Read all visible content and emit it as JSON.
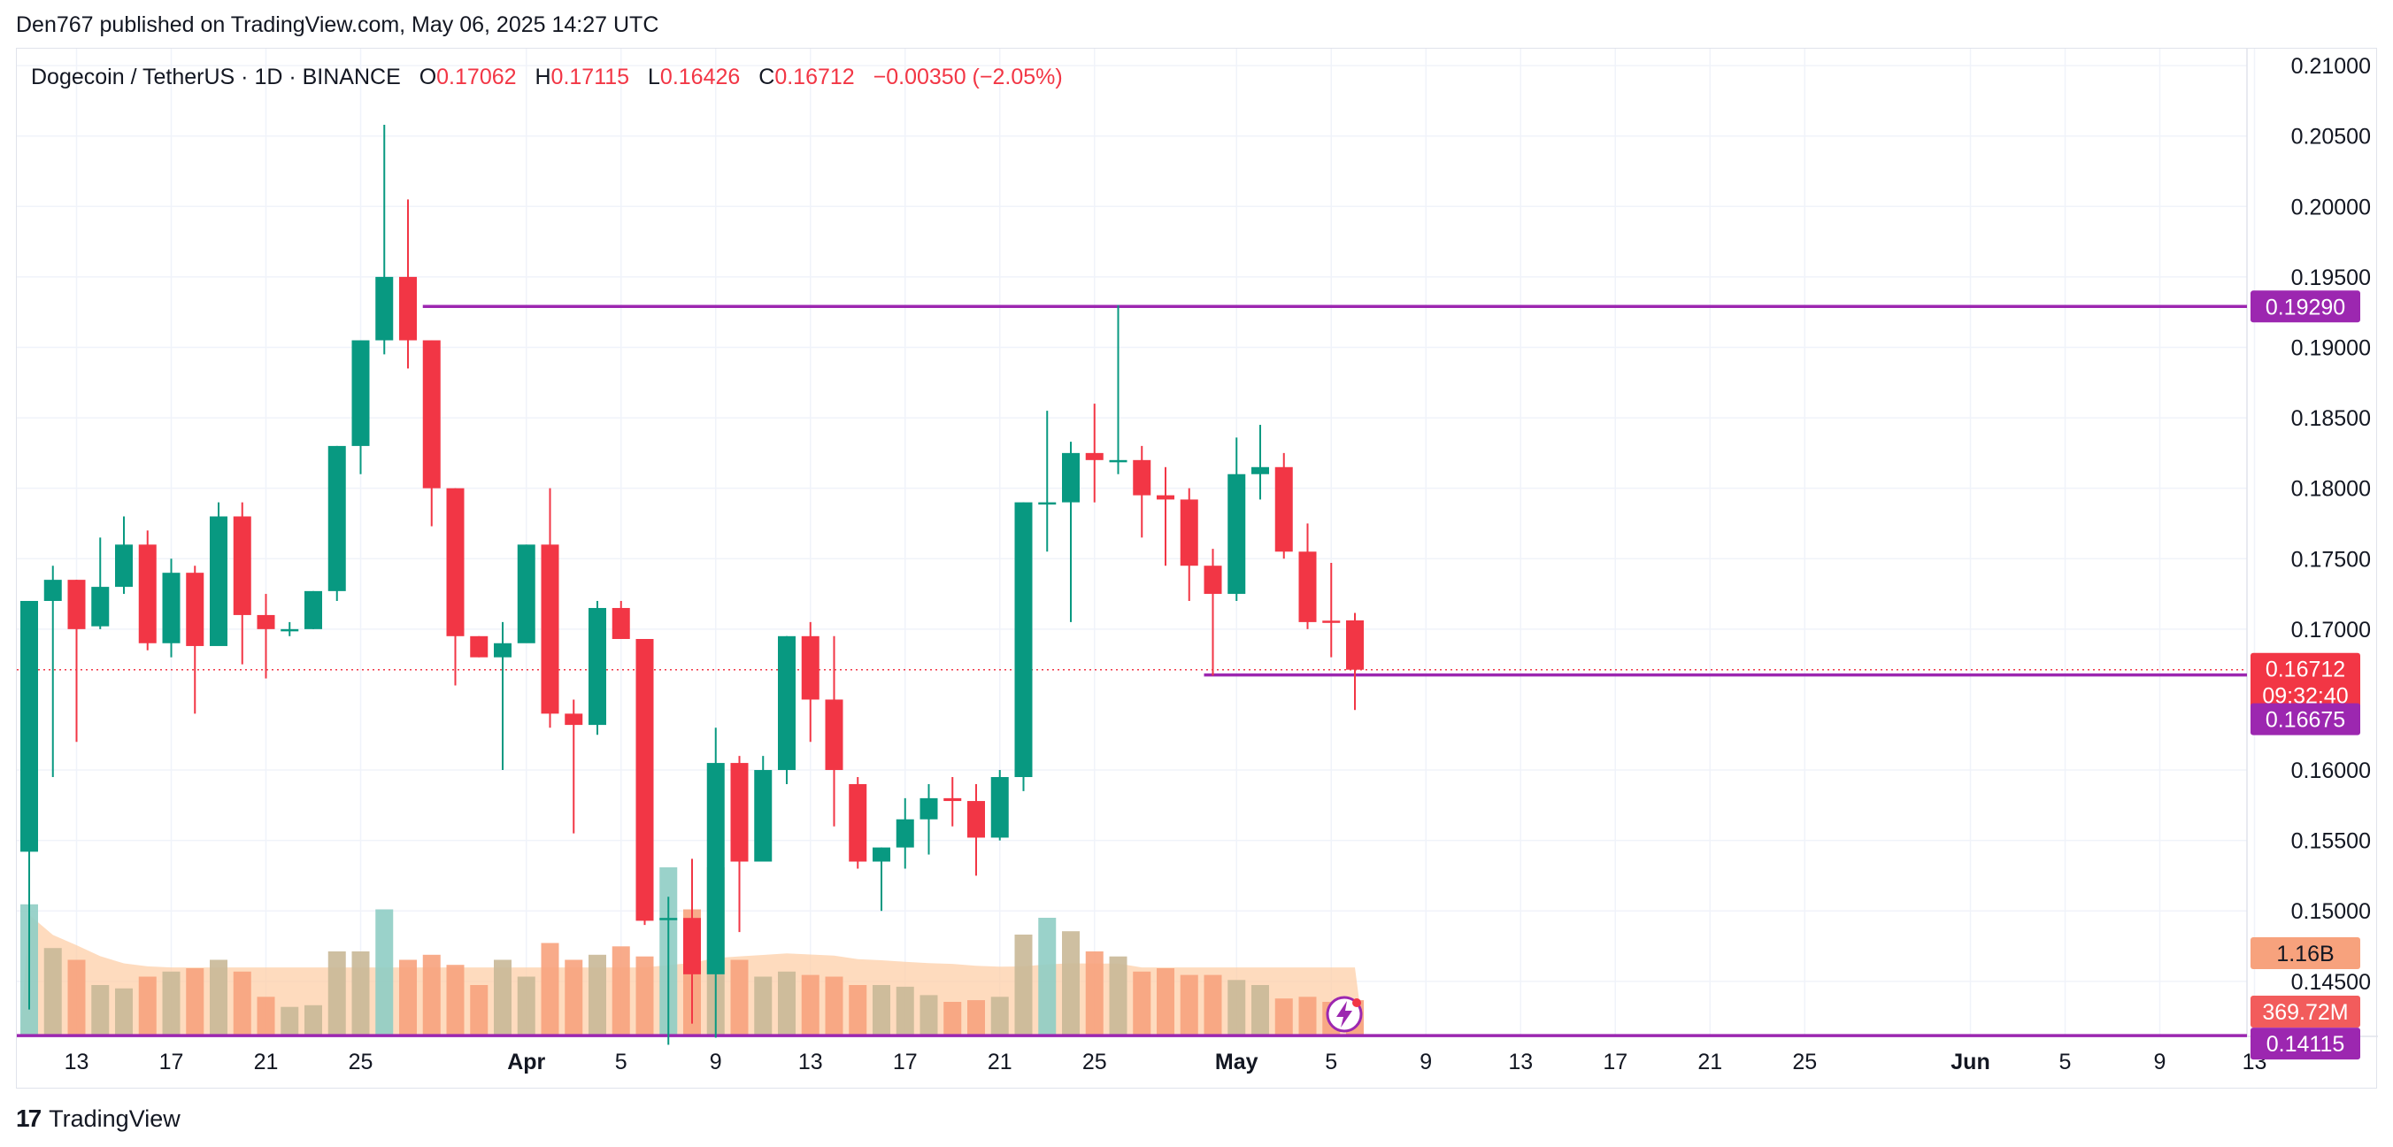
{
  "header": {
    "publisher": "Den767 published on TradingView.com, May 06, 2025 14:27 UTC"
  },
  "legend": {
    "symbol": "Dogecoin / TetherUS · 1D · BINANCE",
    "o_label": "O",
    "o": "0.17062",
    "h_label": "H",
    "h": "0.17115",
    "l_label": "L",
    "l": "0.16426",
    "c_label": "C",
    "c": "0.16712",
    "change": "−0.00350 (−2.05%)"
  },
  "footer": {
    "brand": "TradingView",
    "logo_icon": "tradingview-logo-icon"
  },
  "colors": {
    "up": "#089981",
    "down": "#f23645",
    "vol_up": "#c9b897",
    "vol_down": "#f7a27d",
    "vol_up_big": "#8fcdc4",
    "vol_ma": "#fdcfa8",
    "level": "#9c27b0",
    "grid": "#f0f3fa",
    "price_line": "#f23645"
  },
  "chart_data": {
    "type": "candlestick",
    "y_axis": {
      "ticks": [
        "0.21000",
        "0.20500",
        "0.20000",
        "0.19500",
        "0.19000",
        "0.18500",
        "0.18000",
        "0.17500",
        "0.17000",
        "0.16000",
        "0.15500",
        "0.15000",
        "0.14500"
      ],
      "ylim": [
        0.1399,
        0.2112
      ]
    },
    "x_axis": {
      "ticks": [
        {
          "label": "13",
          "i": 2
        },
        {
          "label": "17",
          "i": 6
        },
        {
          "label": "21",
          "i": 10
        },
        {
          "label": "25",
          "i": 14
        },
        {
          "label": "Apr",
          "i": 21
        },
        {
          "label": "5",
          "i": 25
        },
        {
          "label": "9",
          "i": 29
        },
        {
          "label": "13",
          "i": 33
        },
        {
          "label": "17",
          "i": 37
        },
        {
          "label": "21",
          "i": 41
        },
        {
          "label": "25",
          "i": 45
        },
        {
          "label": "May",
          "i": 51
        },
        {
          "label": "5",
          "i": 55
        },
        {
          "label": "9",
          "i": 59
        },
        {
          "label": "13",
          "i": 63
        },
        {
          "label": "17",
          "i": 67
        },
        {
          "label": "21",
          "i": 71
        },
        {
          "label": "25",
          "i": 75
        },
        {
          "label": "Jun",
          "i": 82
        },
        {
          "label": "5",
          "i": 86
        },
        {
          "label": "9",
          "i": 90
        },
        {
          "label": "13",
          "i": 94
        }
      ]
    },
    "candles": [
      [
        0.1542,
        0.172,
        0.143,
        0.172
      ],
      [
        0.172,
        0.1745,
        0.1595,
        0.1735
      ],
      [
        0.1735,
        0.1735,
        0.162,
        0.17
      ],
      [
        0.1702,
        0.1765,
        0.17,
        0.173
      ],
      [
        0.173,
        0.178,
        0.1725,
        0.176
      ],
      [
        0.176,
        0.177,
        0.1685,
        0.169
      ],
      [
        0.169,
        0.175,
        0.168,
        0.174
      ],
      [
        0.174,
        0.1745,
        0.164,
        0.1688
      ],
      [
        0.1688,
        0.179,
        0.169,
        0.178
      ],
      [
        0.178,
        0.179,
        0.1675,
        0.171
      ],
      [
        0.171,
        0.1725,
        0.1665,
        0.17
      ],
      [
        0.17,
        0.1705,
        0.1695,
        0.17
      ],
      [
        0.17,
        0.1727,
        0.17,
        0.1727
      ],
      [
        0.1727,
        0.183,
        0.172,
        0.183
      ],
      [
        0.183,
        0.1905,
        0.181,
        0.1905
      ],
      [
        0.1905,
        0.2058,
        0.1895,
        0.195
      ],
      [
        0.195,
        0.2005,
        0.1885,
        0.1905
      ],
      [
        0.1905,
        0.1905,
        0.1773,
        0.18
      ],
      [
        0.18,
        0.18,
        0.166,
        0.1695
      ],
      [
        0.1695,
        0.1695,
        0.168,
        0.168
      ],
      [
        0.168,
        0.1705,
        0.16,
        0.169
      ],
      [
        0.169,
        0.176,
        0.1695,
        0.176
      ],
      [
        0.176,
        0.18,
        0.163,
        0.164
      ],
      [
        0.164,
        0.165,
        0.1555,
        0.1632
      ],
      [
        0.1632,
        0.172,
        0.1625,
        0.1715
      ],
      [
        0.1715,
        0.172,
        0.1695,
        0.1693
      ],
      [
        0.1693,
        0.1693,
        0.149,
        0.1493
      ],
      [
        0.1495,
        0.151,
        0.1405,
        0.1495
      ],
      [
        0.1495,
        0.1537,
        0.142,
        0.1455
      ],
      [
        0.1455,
        0.163,
        0.141,
        0.1605
      ],
      [
        0.1605,
        0.161,
        0.1485,
        0.1535
      ],
      [
        0.1535,
        0.161,
        0.1535,
        0.16
      ],
      [
        0.16,
        0.1695,
        0.159,
        0.1695
      ],
      [
        0.1695,
        0.1705,
        0.162,
        0.165
      ],
      [
        0.165,
        0.1695,
        0.156,
        0.16
      ],
      [
        0.159,
        0.1595,
        0.153,
        0.1535
      ],
      [
        0.1535,
        0.1545,
        0.15,
        0.1545
      ],
      [
        0.1545,
        0.158,
        0.153,
        0.1565
      ],
      [
        0.1565,
        0.159,
        0.154,
        0.158
      ],
      [
        0.158,
        0.1595,
        0.156,
        0.1578
      ],
      [
        0.1578,
        0.159,
        0.1525,
        0.1552
      ],
      [
        0.1552,
        0.16,
        0.155,
        0.1595
      ],
      [
        0.1595,
        0.179,
        0.1585,
        0.179
      ],
      [
        0.179,
        0.1855,
        0.1755,
        0.179
      ],
      [
        0.179,
        0.1833,
        0.1705,
        0.1825
      ],
      [
        0.1825,
        0.186,
        0.179,
        0.182
      ],
      [
        0.182,
        0.193,
        0.181,
        0.182
      ],
      [
        0.182,
        0.183,
        0.1765,
        0.1795
      ],
      [
        0.1795,
        0.1815,
        0.1745,
        0.1792
      ],
      [
        0.1792,
        0.18,
        0.172,
        0.1745
      ],
      [
        0.1745,
        0.1757,
        0.1667,
        0.1725
      ],
      [
        0.1725,
        0.1836,
        0.172,
        0.181
      ],
      [
        0.181,
        0.1845,
        0.1792,
        0.1815
      ],
      [
        0.1815,
        0.1825,
        0.175,
        0.1755
      ],
      [
        0.1755,
        0.1775,
        0.17,
        0.1705
      ],
      [
        0.1706,
        0.1747,
        0.168,
        0.1705
      ],
      [
        0.17062,
        0.17115,
        0.16426,
        0.16712
      ]
    ],
    "volume": {
      "values": [
        0.78,
        0.52,
        0.45,
        0.3,
        0.28,
        0.35,
        0.38,
        0.4,
        0.45,
        0.38,
        0.23,
        0.17,
        0.18,
        0.5,
        0.5,
        0.75,
        0.45,
        0.48,
        0.42,
        0.3,
        0.45,
        0.35,
        0.55,
        0.45,
        0.48,
        0.53,
        0.47,
        1.0,
        0.75,
        1.0,
        0.45,
        0.35,
        0.38,
        0.36,
        0.35,
        0.3,
        0.3,
        0.29,
        0.24,
        0.2,
        0.21,
        0.23,
        0.6,
        0.7,
        0.62,
        0.5,
        0.47,
        0.38,
        0.4,
        0.36,
        0.36,
        0.33,
        0.3,
        0.22,
        0.23,
        0.2,
        0.21
      ],
      "big_up_index": [
        0,
        15,
        27,
        43
      ]
    },
    "volume_ma_label": "1.16B",
    "volume_label": "369.72M",
    "levels": [
      {
        "price": 0.1929,
        "label": "0.19290",
        "from_index": 17
      },
      {
        "price": 0.16675,
        "label": "0.16675",
        "from_index": 50
      },
      {
        "price": 0.14115,
        "label": "0.14115",
        "from_index": 0
      }
    ],
    "last_price": {
      "label": "0.16712",
      "countdown": "09:32:40"
    }
  }
}
